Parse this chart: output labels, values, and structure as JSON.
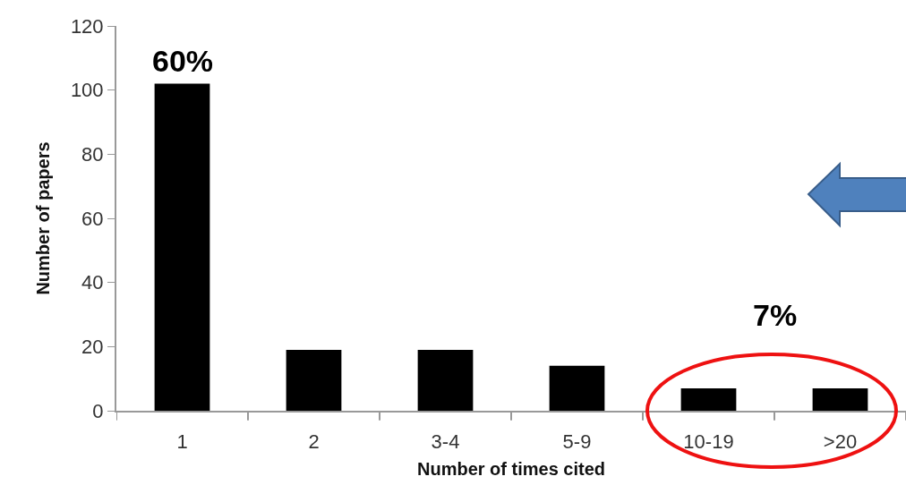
{
  "chart_data": {
    "type": "bar",
    "xlabel": "Number of times cited",
    "ylabel": "Number of papers",
    "categories": [
      "1",
      "2",
      "3-4",
      "5-9",
      "10-19",
      ">20"
    ],
    "values": [
      102,
      19,
      19,
      14,
      7,
      7
    ],
    "color": "#000000",
    "ylim": [
      0,
      120
    ],
    "yticks": [
      0,
      20,
      40,
      60,
      80,
      100,
      120
    ],
    "grid": false,
    "annotations": [
      "60%",
      "7%"
    ]
  }
}
